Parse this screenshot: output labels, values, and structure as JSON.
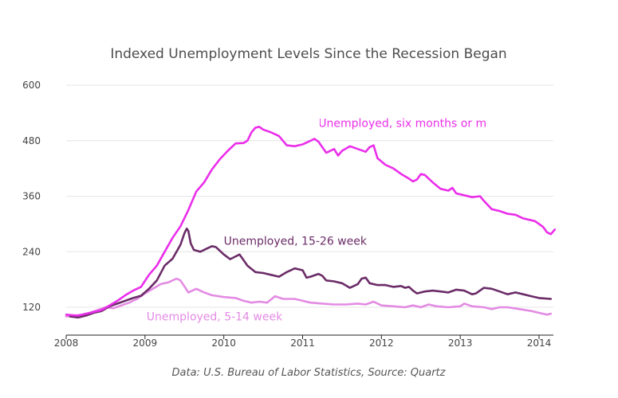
{
  "chart_data": {
    "type": "line",
    "title": "Indexed Unemployment Levels Since the Recession Began",
    "footer": "Data: U.S. Bureau of Labor Statistics, Source: Quartz",
    "xlabel": "",
    "ylabel": "",
    "xlim": [
      2008.0,
      2014.2
    ],
    "ylim": [
      55,
      600
    ],
    "x_ticks": [
      2008,
      2009,
      2010,
      2011,
      2012,
      2013,
      2014
    ],
    "x_tick_labels": [
      "2008",
      "2009",
      "2010",
      "2011",
      "2012",
      "2013",
      "2014"
    ],
    "y_ticks": [
      120,
      240,
      360,
      480,
      600
    ],
    "y_tick_labels": [
      "120",
      "240",
      "360",
      "480",
      "600"
    ],
    "grid": "horizontal",
    "legend": "none",
    "series": [
      {
        "name": "Unemployed, 5-14 week",
        "label": "Unemployed, 5-14 week",
        "color": "#e38be3",
        "points": [
          [
            2008.0,
            100
          ],
          [
            2008.1,
            102
          ],
          [
            2008.2,
            104
          ],
          [
            2008.3,
            108
          ],
          [
            2008.4,
            114
          ],
          [
            2008.5,
            120
          ],
          [
            2008.6,
            118
          ],
          [
            2008.7,
            124
          ],
          [
            2008.8,
            130
          ],
          [
            2008.9,
            138
          ],
          [
            2009.0,
            150
          ],
          [
            2009.1,
            160
          ],
          [
            2009.2,
            170
          ],
          [
            2009.3,
            174
          ],
          [
            2009.4,
            182
          ],
          [
            2009.45,
            178
          ],
          [
            2009.5,
            165
          ],
          [
            2009.55,
            152
          ],
          [
            2009.65,
            160
          ],
          [
            2009.75,
            152
          ],
          [
            2009.85,
            146
          ],
          [
            2010.0,
            142
          ],
          [
            2010.15,
            140
          ],
          [
            2010.25,
            134
          ],
          [
            2010.35,
            130
          ],
          [
            2010.45,
            132
          ],
          [
            2010.55,
            130
          ],
          [
            2010.65,
            144
          ],
          [
            2010.75,
            138
          ],
          [
            2010.9,
            138
          ],
          [
            2011.0,
            134
          ],
          [
            2011.1,
            130
          ],
          [
            2011.25,
            128
          ],
          [
            2011.4,
            126
          ],
          [
            2011.55,
            126
          ],
          [
            2011.7,
            128
          ],
          [
            2011.8,
            126
          ],
          [
            2011.9,
            132
          ],
          [
            2012.0,
            124
          ],
          [
            2012.15,
            122
          ],
          [
            2012.3,
            120
          ],
          [
            2012.4,
            124
          ],
          [
            2012.5,
            120
          ],
          [
            2012.6,
            126
          ],
          [
            2012.7,
            122
          ],
          [
            2012.85,
            120
          ],
          [
            2013.0,
            122
          ],
          [
            2013.05,
            128
          ],
          [
            2013.15,
            122
          ],
          [
            2013.3,
            120
          ],
          [
            2013.4,
            116
          ],
          [
            2013.5,
            120
          ],
          [
            2013.6,
            120
          ],
          [
            2013.75,
            116
          ],
          [
            2013.9,
            112
          ],
          [
            2014.0,
            108
          ],
          [
            2014.1,
            104
          ],
          [
            2014.15,
            106
          ]
        ]
      },
      {
        "name": "Unemployed, 15-26 week",
        "label": "Unemployed, 15-26 week",
        "color": "#6b2c68",
        "points": [
          [
            2008.05,
            100
          ],
          [
            2008.15,
            98
          ],
          [
            2008.25,
            102
          ],
          [
            2008.35,
            108
          ],
          [
            2008.45,
            112
          ],
          [
            2008.55,
            122
          ],
          [
            2008.65,
            128
          ],
          [
            2008.75,
            134
          ],
          [
            2008.85,
            140
          ],
          [
            2008.95,
            145
          ],
          [
            2009.05,
            160
          ],
          [
            2009.15,
            178
          ],
          [
            2009.25,
            210
          ],
          [
            2009.35,
            225
          ],
          [
            2009.45,
            255
          ],
          [
            2009.5,
            280
          ],
          [
            2009.53,
            290
          ],
          [
            2009.55,
            285
          ],
          [
            2009.58,
            258
          ],
          [
            2009.62,
            244
          ],
          [
            2009.7,
            240
          ],
          [
            2009.8,
            248
          ],
          [
            2009.85,
            252
          ],
          [
            2009.9,
            250
          ],
          [
            2010.0,
            234
          ],
          [
            2010.08,
            224
          ],
          [
            2010.15,
            230
          ],
          [
            2010.2,
            234
          ],
          [
            2010.25,
            222
          ],
          [
            2010.3,
            210
          ],
          [
            2010.4,
            196
          ],
          [
            2010.5,
            194
          ],
          [
            2010.6,
            190
          ],
          [
            2010.7,
            186
          ],
          [
            2010.8,
            196
          ],
          [
            2010.9,
            204
          ],
          [
            2011.0,
            200
          ],
          [
            2011.05,
            184
          ],
          [
            2011.1,
            186
          ],
          [
            2011.2,
            192
          ],
          [
            2011.25,
            188
          ],
          [
            2011.3,
            178
          ],
          [
            2011.4,
            176
          ],
          [
            2011.5,
            172
          ],
          [
            2011.6,
            162
          ],
          [
            2011.7,
            170
          ],
          [
            2011.75,
            182
          ],
          [
            2011.8,
            184
          ],
          [
            2011.85,
            172
          ],
          [
            2011.95,
            168
          ],
          [
            2012.05,
            168
          ],
          [
            2012.15,
            164
          ],
          [
            2012.25,
            166
          ],
          [
            2012.3,
            162
          ],
          [
            2012.35,
            164
          ],
          [
            2012.4,
            156
          ],
          [
            2012.45,
            150
          ],
          [
            2012.55,
            154
          ],
          [
            2012.65,
            156
          ],
          [
            2012.75,
            154
          ],
          [
            2012.85,
            152
          ],
          [
            2012.95,
            158
          ],
          [
            2013.05,
            156
          ],
          [
            2013.15,
            148
          ],
          [
            2013.2,
            150
          ],
          [
            2013.3,
            162
          ],
          [
            2013.4,
            160
          ],
          [
            2013.5,
            154
          ],
          [
            2013.6,
            148
          ],
          [
            2013.7,
            152
          ],
          [
            2013.8,
            148
          ],
          [
            2013.9,
            144
          ],
          [
            2014.0,
            140
          ],
          [
            2014.15,
            138
          ]
        ]
      },
      {
        "name": "Unemployed, six months or more",
        "label": "Unemployed, six months or more",
        "color": "#ea2eea",
        "points": [
          [
            2008.0,
            104
          ],
          [
            2008.15,
            102
          ],
          [
            2008.3,
            108
          ],
          [
            2008.45,
            114
          ],
          [
            2008.55,
            124
          ],
          [
            2008.65,
            134
          ],
          [
            2008.75,
            146
          ],
          [
            2008.85,
            156
          ],
          [
            2008.95,
            164
          ],
          [
            2009.05,
            190
          ],
          [
            2009.15,
            210
          ],
          [
            2009.25,
            240
          ],
          [
            2009.35,
            270
          ],
          [
            2009.45,
            295
          ],
          [
            2009.55,
            330
          ],
          [
            2009.65,
            370
          ],
          [
            2009.75,
            390
          ],
          [
            2009.85,
            418
          ],
          [
            2009.95,
            440
          ],
          [
            2010.05,
            458
          ],
          [
            2010.15,
            474
          ],
          [
            2010.25,
            475
          ],
          [
            2010.3,
            480
          ],
          [
            2010.35,
            498
          ],
          [
            2010.4,
            508
          ],
          [
            2010.45,
            510
          ],
          [
            2010.5,
            504
          ],
          [
            2010.6,
            498
          ],
          [
            2010.7,
            490
          ],
          [
            2010.75,
            480
          ],
          [
            2010.8,
            470
          ],
          [
            2010.9,
            468
          ],
          [
            2011.0,
            472
          ],
          [
            2011.1,
            480
          ],
          [
            2011.15,
            484
          ],
          [
            2011.2,
            478
          ],
          [
            2011.25,
            466
          ],
          [
            2011.3,
            454
          ],
          [
            2011.4,
            462
          ],
          [
            2011.45,
            448
          ],
          [
            2011.5,
            458
          ],
          [
            2011.6,
            468
          ],
          [
            2011.7,
            462
          ],
          [
            2011.8,
            456
          ],
          [
            2011.85,
            466
          ],
          [
            2011.9,
            470
          ],
          [
            2011.95,
            442
          ],
          [
            2012.05,
            428
          ],
          [
            2012.15,
            420
          ],
          [
            2012.25,
            408
          ],
          [
            2012.35,
            398
          ],
          [
            2012.4,
            392
          ],
          [
            2012.45,
            396
          ],
          [
            2012.5,
            408
          ],
          [
            2012.55,
            406
          ],
          [
            2012.65,
            390
          ],
          [
            2012.75,
            376
          ],
          [
            2012.85,
            372
          ],
          [
            2012.9,
            378
          ],
          [
            2012.95,
            366
          ],
          [
            2013.05,
            362
          ],
          [
            2013.15,
            358
          ],
          [
            2013.25,
            360
          ],
          [
            2013.3,
            350
          ],
          [
            2013.4,
            332
          ],
          [
            2013.5,
            328
          ],
          [
            2013.6,
            322
          ],
          [
            2013.7,
            320
          ],
          [
            2013.8,
            312
          ],
          [
            2013.9,
            308
          ],
          [
            2013.95,
            306
          ],
          [
            2014.05,
            294
          ],
          [
            2014.1,
            282
          ],
          [
            2014.15,
            278
          ],
          [
            2014.2,
            288
          ]
        ]
      }
    ],
    "annotations": [
      {
        "text": "Unemployed, six months or more",
        "x": 2011.2,
        "y": 510,
        "series": 2
      },
      {
        "text": "Unemployed, 15-26 week",
        "x": 2010.0,
        "y": 255,
        "series": 1
      },
      {
        "text": "Unemployed, 5-14 week",
        "x": 2009.02,
        "y": 92,
        "series": 0
      }
    ]
  }
}
